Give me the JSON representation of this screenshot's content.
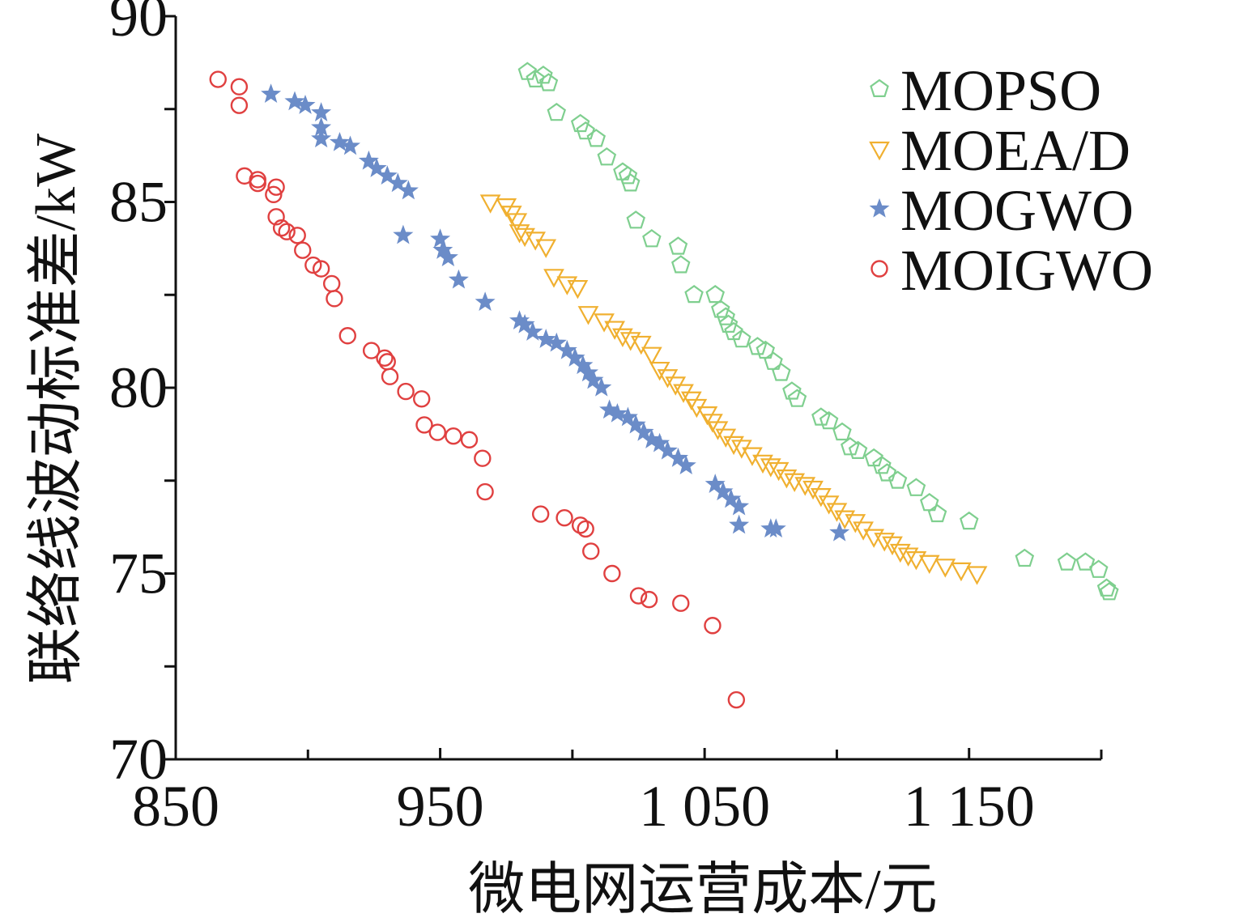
{
  "chart_data": {
    "type": "scatter",
    "xlabel": "微电网运营成本/元",
    "ylabel": "联络线波动标准差/kW",
    "xlim": [
      850,
      1200
    ],
    "ylim": [
      70,
      90
    ],
    "x_ticks": [
      850,
      950,
      1050,
      1150
    ],
    "x_tick_labels": [
      "850",
      "950",
      "1 050",
      "1 150"
    ],
    "y_ticks": [
      70,
      75,
      80,
      85,
      90
    ],
    "y_tick_labels": [
      "70",
      "75",
      "80",
      "85",
      "90"
    ],
    "grid": false,
    "legend_position": "top-right",
    "series": [
      {
        "name": "MOPSO",
        "marker": "pentagon",
        "color": "#7fcf8f",
        "points": [
          [
            983,
            88.5
          ],
          [
            986,
            88.3
          ],
          [
            989,
            88.4
          ],
          [
            991,
            88.2
          ],
          [
            994,
            87.4
          ],
          [
            1003,
            87.1
          ],
          [
            1005,
            86.9
          ],
          [
            1009,
            86.7
          ],
          [
            1013,
            86.2
          ],
          [
            1019,
            85.8
          ],
          [
            1021,
            85.7
          ],
          [
            1022,
            85.5
          ],
          [
            1024,
            84.5
          ],
          [
            1030,
            84.0
          ],
          [
            1040,
            83.8
          ],
          [
            1041,
            83.3
          ],
          [
            1046,
            82.5
          ],
          [
            1054,
            82.5
          ],
          [
            1056,
            82.1
          ],
          [
            1058,
            81.9
          ],
          [
            1059,
            81.7
          ],
          [
            1061,
            81.5
          ],
          [
            1064,
            81.3
          ],
          [
            1070,
            81.1
          ],
          [
            1073,
            81.0
          ],
          [
            1076,
            80.7
          ],
          [
            1079,
            80.4
          ],
          [
            1083,
            79.9
          ],
          [
            1085,
            79.7
          ],
          [
            1094,
            79.2
          ],
          [
            1097,
            79.1
          ],
          [
            1102,
            78.8
          ],
          [
            1105,
            78.4
          ],
          [
            1108,
            78.3
          ],
          [
            1114,
            78.1
          ],
          [
            1117,
            77.9
          ],
          [
            1119,
            77.7
          ],
          [
            1123,
            77.5
          ],
          [
            1130,
            77.3
          ],
          [
            1135,
            76.9
          ],
          [
            1138,
            76.6
          ],
          [
            1150,
            76.4
          ],
          [
            1171,
            75.4
          ],
          [
            1187,
            75.3
          ],
          [
            1194,
            75.3
          ],
          [
            1199,
            75.1
          ],
          [
            1202,
            74.6
          ],
          [
            1203,
            74.5
          ]
        ]
      },
      {
        "name": "MOEA/D",
        "marker": "triangle-down",
        "color": "#f0b030",
        "points": [
          [
            969,
            85.0
          ],
          [
            975,
            84.9
          ],
          [
            977,
            84.7
          ],
          [
            979,
            84.5
          ],
          [
            980,
            84.2
          ],
          [
            982,
            84.1
          ],
          [
            986,
            84.0
          ],
          [
            990,
            83.8
          ],
          [
            993,
            83.0
          ],
          [
            998,
            82.8
          ],
          [
            1002,
            82.7
          ],
          [
            1006,
            82.0
          ],
          [
            1012,
            81.8
          ],
          [
            1016,
            81.6
          ],
          [
            1019,
            81.4
          ],
          [
            1022,
            81.3
          ],
          [
            1026,
            81.2
          ],
          [
            1030,
            80.9
          ],
          [
            1033,
            80.5
          ],
          [
            1036,
            80.3
          ],
          [
            1039,
            80.1
          ],
          [
            1042,
            79.9
          ],
          [
            1045,
            79.7
          ],
          [
            1047,
            79.5
          ],
          [
            1051,
            79.3
          ],
          [
            1053,
            79.1
          ],
          [
            1055,
            78.9
          ],
          [
            1058,
            78.7
          ],
          [
            1061,
            78.5
          ],
          [
            1064,
            78.4
          ],
          [
            1068,
            78.2
          ],
          [
            1072,
            78.0
          ],
          [
            1075,
            77.9
          ],
          [
            1078,
            77.8
          ],
          [
            1081,
            77.6
          ],
          [
            1084,
            77.5
          ],
          [
            1088,
            77.4
          ],
          [
            1091,
            77.3
          ],
          [
            1094,
            77.1
          ],
          [
            1097,
            76.9
          ],
          [
            1100,
            76.7
          ],
          [
            1103,
            76.5
          ],
          [
            1107,
            76.4
          ],
          [
            1110,
            76.2
          ],
          [
            1114,
            76.0
          ],
          [
            1118,
            75.9
          ],
          [
            1121,
            75.8
          ],
          [
            1124,
            75.6
          ],
          [
            1127,
            75.5
          ],
          [
            1130,
            75.4
          ],
          [
            1135,
            75.3
          ],
          [
            1141,
            75.2
          ],
          [
            1147,
            75.1
          ],
          [
            1153,
            75.0
          ]
        ]
      },
      {
        "name": "MOGWO",
        "marker": "star",
        "color": "#6b8cc8",
        "points": [
          [
            886,
            87.9
          ],
          [
            895,
            87.7
          ],
          [
            899,
            87.6
          ],
          [
            905,
            87.4
          ],
          [
            905,
            87.0
          ],
          [
            905,
            86.7
          ],
          [
            912,
            86.6
          ],
          [
            916,
            86.5
          ],
          [
            923,
            86.1
          ],
          [
            926,
            85.9
          ],
          [
            930,
            85.7
          ],
          [
            934,
            85.5
          ],
          [
            938,
            85.3
          ],
          [
            936,
            84.1
          ],
          [
            950,
            84.0
          ],
          [
            951,
            83.7
          ],
          [
            953,
            83.5
          ],
          [
            957,
            82.9
          ],
          [
            967,
            82.3
          ],
          [
            980,
            81.8
          ],
          [
            982,
            81.7
          ],
          [
            985,
            81.5
          ],
          [
            990,
            81.3
          ],
          [
            994,
            81.2
          ],
          [
            998,
            81.0
          ],
          [
            1001,
            80.8
          ],
          [
            1004,
            80.6
          ],
          [
            1006,
            80.4
          ],
          [
            1008,
            80.2
          ],
          [
            1011,
            80.0
          ],
          [
            1014,
            79.4
          ],
          [
            1017,
            79.3
          ],
          [
            1021,
            79.2
          ],
          [
            1024,
            79.0
          ],
          [
            1027,
            78.8
          ],
          [
            1030,
            78.6
          ],
          [
            1033,
            78.5
          ],
          [
            1036,
            78.3
          ],
          [
            1040,
            78.1
          ],
          [
            1043,
            77.9
          ],
          [
            1054,
            77.4
          ],
          [
            1057,
            77.2
          ],
          [
            1060,
            77.0
          ],
          [
            1063,
            76.8
          ],
          [
            1063,
            76.3
          ],
          [
            1075,
            76.2
          ],
          [
            1077,
            76.2
          ],
          [
            1101,
            76.1
          ]
        ]
      },
      {
        "name": "MOIGWO",
        "marker": "circle",
        "color": "#e04040",
        "points": [
          [
            866,
            88.3
          ],
          [
            874,
            88.1
          ],
          [
            874,
            87.6
          ],
          [
            876,
            85.7
          ],
          [
            881,
            85.6
          ],
          [
            881,
            85.5
          ],
          [
            888,
            85.4
          ],
          [
            887,
            85.2
          ],
          [
            888,
            84.6
          ],
          [
            890,
            84.3
          ],
          [
            892,
            84.2
          ],
          [
            896,
            84.1
          ],
          [
            898,
            83.7
          ],
          [
            902,
            83.3
          ],
          [
            905,
            83.2
          ],
          [
            909,
            82.8
          ],
          [
            910,
            82.4
          ],
          [
            915,
            81.4
          ],
          [
            924,
            81.0
          ],
          [
            929,
            80.8
          ],
          [
            930,
            80.7
          ],
          [
            931,
            80.3
          ],
          [
            937,
            79.9
          ],
          [
            943,
            79.7
          ],
          [
            944,
            79.0
          ],
          [
            949,
            78.8
          ],
          [
            955,
            78.7
          ],
          [
            961,
            78.6
          ],
          [
            966,
            78.1
          ],
          [
            967,
            77.2
          ],
          [
            988,
            76.6
          ],
          [
            997,
            76.5
          ],
          [
            1003,
            76.3
          ],
          [
            1005,
            76.2
          ],
          [
            1007,
            75.6
          ],
          [
            1015,
            75.0
          ],
          [
            1025,
            74.4
          ],
          [
            1029,
            74.3
          ],
          [
            1041,
            74.2
          ],
          [
            1053,
            73.6
          ],
          [
            1062,
            71.6
          ]
        ]
      }
    ]
  }
}
